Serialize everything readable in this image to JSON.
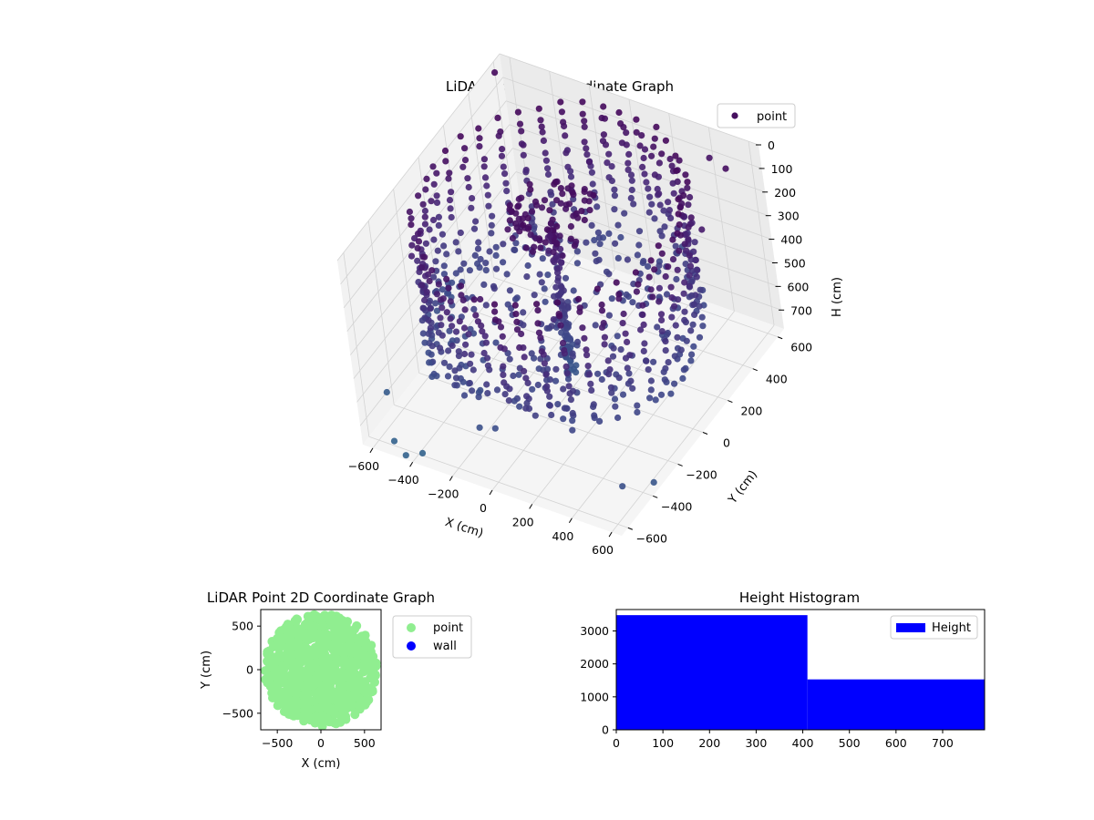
{
  "chart_data": [
    {
      "type": "scatter",
      "projection": "3d",
      "title": "LiDAR Point 3D Coordinate Graph",
      "xlabel": "X (cm)",
      "ylabel": "Y (cm)",
      "zlabel": "H (cm)",
      "xlim": [
        -650,
        650
      ],
      "ylim": [
        -650,
        650
      ],
      "zlim": [
        0,
        780
      ],
      "z_inverted": true,
      "xticks": [
        -600,
        -400,
        -200,
        0,
        200,
        400,
        600
      ],
      "yticks": [
        -600,
        -400,
        -200,
        0,
        200,
        400,
        600
      ],
      "zticks": [
        0,
        100,
        200,
        300,
        400,
        500,
        600,
        700
      ],
      "grid": true,
      "legend": {
        "placement": "top-right",
        "entries": [
          "point"
        ]
      },
      "series": [
        {
          "name": "point",
          "colormap": "viridis",
          "color_by": "height",
          "description_shape": "cylindrical wall of radius ~600 cm with a dense vertical column near the origin, plus scattered outliers",
          "structure": {
            "wall_radius": 600,
            "wall_height_range": [
              0,
              560
            ],
            "column_center": [
              0,
              0
            ],
            "column_height_range": [
              0,
              780
            ]
          },
          "outliers": [
            [
              -620,
              560,
              10
            ],
            [
              420,
              600,
              90
            ],
            [
              560,
              300,
              150
            ],
            [
              600,
              -150,
              120
            ],
            [
              -100,
              450,
              160
            ],
            [
              220,
              480,
              220
            ],
            [
              480,
              60,
              260
            ],
            [
              -420,
              -250,
              500
            ],
            [
              320,
              -420,
              420
            ],
            [
              -150,
              150,
              360
            ],
            [
              100,
              -200,
              330
            ],
            [
              560,
              520,
              40
            ],
            [
              -520,
              -600,
              760
            ],
            [
              -430,
              -650,
              760
            ],
            [
              -380,
              -600,
              770
            ],
            [
              150,
              680,
              600
            ],
            [
              620,
              -560,
              640
            ],
            [
              -640,
              -450,
              690
            ],
            [
              680,
              -420,
              700
            ]
          ]
        }
      ]
    },
    {
      "type": "scatter",
      "title": "LiDAR Point 2D Coordinate Graph",
      "xlabel": "X (cm)",
      "ylabel": "Y (cm)",
      "xlim": [
        -690,
        690
      ],
      "ylim": [
        -690,
        690
      ],
      "xticks": [
        -500,
        0,
        500
      ],
      "yticks": [
        -500,
        0,
        500
      ],
      "legend": {
        "placement": "outside-right",
        "entries": [
          "point",
          "wall"
        ]
      },
      "series": [
        {
          "name": "point",
          "color": "#90ee90",
          "description_shape": "dense filled disk of radius ~650 cm"
        },
        {
          "name": "wall",
          "color": "#0000ff",
          "values": []
        }
      ]
    },
    {
      "type": "bar",
      "subtype": "histogram",
      "title": "Height Histogram",
      "xlim": [
        0,
        790
      ],
      "ylim": [
        0,
        3650
      ],
      "xticks": [
        0,
        100,
        200,
        300,
        400,
        500,
        600,
        700
      ],
      "yticks": [
        0,
        1000,
        2000,
        3000
      ],
      "legend": {
        "placement": "top-right",
        "entries": [
          "Height"
        ]
      },
      "series": [
        {
          "name": "Height",
          "color": "#0000ff",
          "bins": [
            {
              "start": 0,
              "end": 410,
              "count": 3480
            },
            {
              "start": 410,
              "end": 790,
              "count": 1530
            }
          ]
        }
      ]
    }
  ]
}
